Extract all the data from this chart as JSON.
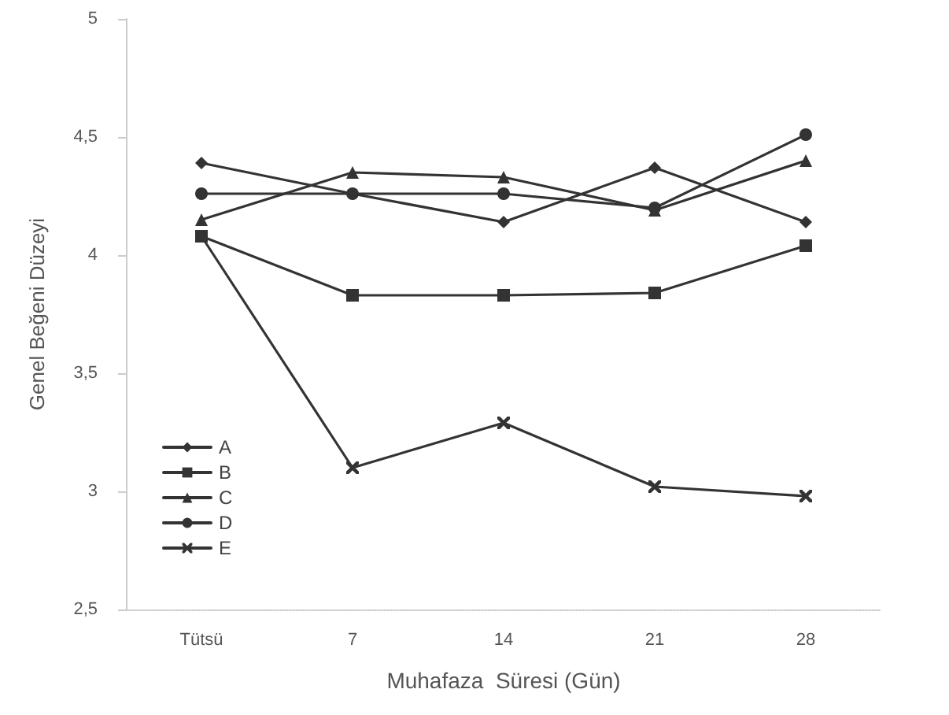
{
  "chart_data": {
    "type": "line",
    "xlabel": "Muhafaza  Süresi (Gün)",
    "ylabel": "Genel Beğeni Düzeyi",
    "categories": [
      "Tütsü",
      "7",
      "14",
      "21",
      "28"
    ],
    "series": [
      {
        "name": "A",
        "color": "#333333",
        "marker": "diamond",
        "values": [
          4.39,
          4.26,
          4.14,
          4.37,
          4.14
        ]
      },
      {
        "name": "B",
        "color": "#333333",
        "marker": "square",
        "values": [
          4.08,
          3.83,
          3.83,
          3.84,
          4.04
        ]
      },
      {
        "name": "C",
        "color": "#333333",
        "marker": "triangle",
        "values": [
          4.15,
          4.35,
          4.33,
          4.19,
          4.4
        ]
      },
      {
        "name": "D",
        "color": "#333333",
        "marker": "circle",
        "values": [
          4.26,
          4.26,
          4.26,
          4.2,
          4.51
        ]
      },
      {
        "name": "E",
        "color": "#333333",
        "marker": "cross",
        "values": [
          4.08,
          3.1,
          3.29,
          3.02,
          2.98
        ]
      }
    ],
    "ylim": [
      2.5,
      5
    ],
    "yticks": [
      {
        "value": 2.5,
        "label": "2,5"
      },
      3,
      {
        "value": 3.5,
        "label": "3,5"
      },
      4,
      {
        "value": 4.5,
        "label": "4,5"
      },
      5
    ],
    "grid": false,
    "legend": "bottom left",
    "line_style": "solid"
  }
}
